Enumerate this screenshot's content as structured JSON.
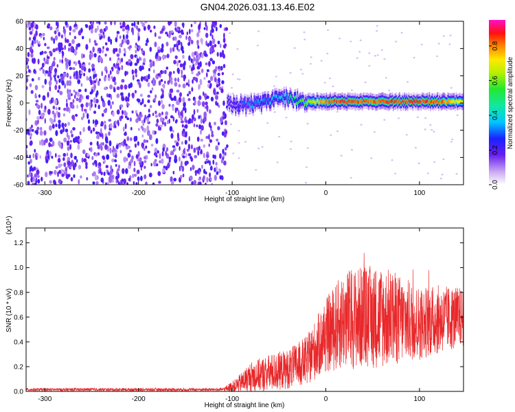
{
  "title": "GN04.2026.031.13.46.E02",
  "colors": {
    "snr_line": "#e8282a",
    "axes": "#000000"
  },
  "chart_data": [
    {
      "type": "heatmap",
      "name": "spectrogram",
      "xlabel": "Height of straight line (km)",
      "ylabel": "Frequency (Hz)",
      "xlim": [
        -320,
        147
      ],
      "ylim": [
        -60,
        60
      ],
      "x_ticks": [
        -300,
        -200,
        -100,
        0,
        100
      ],
      "x_tick_labels": [
        "-300",
        "-200",
        "-100",
        "0",
        "100"
      ],
      "y_ticks": [
        60,
        40,
        20,
        0,
        -20,
        -40,
        -60
      ],
      "y_tick_labels": [
        "60",
        "40",
        "20",
        "0",
        "-20",
        "-40",
        "-60"
      ],
      "colorbar": {
        "label": "Normalized spectral amplitude",
        "range": [
          0,
          0.95
        ],
        "ticks": [
          0.0,
          0.2,
          0.4,
          0.6,
          0.8
        ],
        "tick_labels": [
          "0.0",
          "0.2",
          "0.4",
          "0.6",
          "0.8"
        ]
      },
      "noise_region_km": [
        -320,
        -105
      ],
      "signal_track": {
        "x": [
          -105,
          -95,
          -80,
          -65,
          -50,
          -40,
          -25,
          0,
          25,
          50,
          75,
          100,
          125,
          147
        ],
        "freq_hz": [
          0,
          -2,
          -1,
          1,
          5,
          3,
          1,
          1,
          1,
          1,
          1,
          1,
          1,
          1
        ],
        "peak_amplitude": [
          0.2,
          0.25,
          0.35,
          0.35,
          0.4,
          0.45,
          0.6,
          0.85,
          0.9,
          0.85,
          0.9,
          0.9,
          0.85,
          0.7
        ]
      }
    },
    {
      "type": "line",
      "name": "snr",
      "xlabel": "Height of straight line (km)",
      "ylabel": "SNR (10 * v/v)",
      "multiplier_label": "(x10⁴)",
      "xlim": [
        -320,
        147
      ],
      "ylim": [
        0,
        1.32
      ],
      "x_ticks": [
        -300,
        -200,
        -100,
        0,
        100
      ],
      "x_tick_labels": [
        "-300",
        "-200",
        "-100",
        "0",
        "100"
      ],
      "y_ticks": [
        0.0,
        0.2,
        0.4,
        0.6,
        0.8,
        1.0,
        1.2
      ],
      "y_tick_labels": [
        "0.0",
        "0.2",
        "0.4",
        "0.6",
        "0.8",
        "1.0",
        "1.2"
      ],
      "envelope": {
        "x": [
          -320,
          -110,
          -95,
          -80,
          -60,
          -40,
          -20,
          0,
          20,
          40,
          60,
          80,
          100,
          120,
          147
        ],
        "mean": [
          0.015,
          0.015,
          0.05,
          0.12,
          0.15,
          0.18,
          0.25,
          0.45,
          0.58,
          0.6,
          0.6,
          0.58,
          0.55,
          0.58,
          0.6
        ],
        "amplitude": [
          0.012,
          0.012,
          0.06,
          0.12,
          0.15,
          0.16,
          0.2,
          0.3,
          0.4,
          0.42,
          0.42,
          0.36,
          0.3,
          0.28,
          0.24
        ]
      }
    }
  ]
}
